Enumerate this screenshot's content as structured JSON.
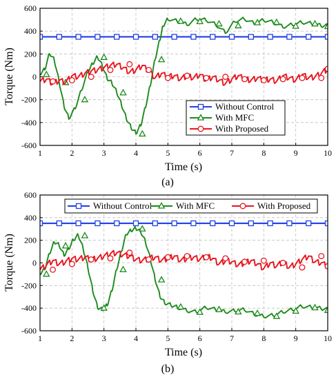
{
  "figure": {
    "caption_a": "(a)",
    "caption_b": "(b)"
  },
  "colors": {
    "without_control": "#1f3fe6",
    "with_mfc": "#1b8a1b",
    "with_proposed": "#e8141e",
    "grid": "#bfbfbf"
  },
  "chart_data": [
    {
      "type": "line",
      "panel": "a",
      "xlabel": "Time (s)",
      "ylabel": "Torque (Nm)",
      "xlim": [
        1,
        10
      ],
      "ylim": [
        -600,
        600
      ],
      "xticks": [
        1,
        2,
        3,
        4,
        5,
        6,
        7,
        8,
        9,
        10
      ],
      "yticks": [
        -600,
        -400,
        -200,
        0,
        200,
        400,
        600
      ],
      "grid": true,
      "legend_position": "bottom-right",
      "series": [
        {
          "name": "Without Control",
          "color": "#1f3fe6",
          "marker": "square",
          "x": [
            1,
            10
          ],
          "y": [
            350,
            350
          ]
        },
        {
          "name": "With MFC",
          "color": "#1b8a1b",
          "marker": "triangle",
          "x": [
            1.0,
            1.15,
            1.3,
            1.45,
            1.6,
            1.75,
            1.9,
            2.1,
            2.3,
            2.5,
            2.65,
            2.8,
            2.95,
            3.1,
            3.25,
            3.4,
            3.55,
            3.7,
            3.85,
            4.0,
            4.15,
            4.3,
            4.45,
            4.6,
            4.75,
            4.85,
            5.0,
            5.3,
            5.6,
            5.9,
            6.2,
            6.5,
            6.8,
            7.1,
            7.4,
            7.7,
            8.0,
            8.3,
            8.6,
            8.9,
            9.2,
            9.5,
            9.8,
            10.0
          ],
          "y": [
            20,
            60,
            200,
            140,
            -50,
            -260,
            -370,
            -280,
            -120,
            40,
            110,
            170,
            90,
            -20,
            -60,
            -140,
            -250,
            -370,
            -450,
            -500,
            -430,
            -270,
            -80,
            150,
            320,
            440,
            500,
            480,
            450,
            500,
            490,
            450,
            380,
            480,
            500,
            460,
            490,
            470,
            430,
            450,
            470,
            460,
            440,
            440
          ]
        },
        {
          "name": "With Proposed",
          "color": "#e8141e",
          "marker": "circle",
          "x": [
            1.0,
            1.2,
            1.4,
            1.6,
            1.8,
            2.0,
            2.2,
            2.4,
            2.6,
            2.8,
            3.0,
            3.2,
            3.4,
            3.6,
            3.8,
            4.0,
            4.2,
            4.4,
            4.6,
            4.8,
            5.0,
            5.2,
            5.4,
            5.6,
            5.8,
            6.0,
            6.2,
            6.4,
            6.6,
            6.8,
            7.0,
            7.2,
            7.4,
            7.6,
            7.8,
            8.0,
            8.2,
            8.4,
            8.6,
            8.8,
            9.0,
            9.2,
            9.4,
            9.6,
            9.8,
            10.0
          ],
          "y": [
            -40,
            -20,
            -60,
            -30,
            -50,
            10,
            0,
            30,
            50,
            60,
            80,
            100,
            110,
            80,
            40,
            60,
            100,
            50,
            -10,
            30,
            0,
            10,
            -20,
            10,
            -10,
            20,
            -30,
            0,
            -30,
            -60,
            -20,
            10,
            -20,
            -30,
            -10,
            -30,
            -20,
            -40,
            10,
            -10,
            -30,
            20,
            -10,
            0,
            30,
            70
          ]
        }
      ]
    },
    {
      "type": "line",
      "panel": "b",
      "xlabel": "Time (s)",
      "ylabel": "Torque (Nm)",
      "xlim": [
        1,
        10
      ],
      "ylim": [
        -600,
        600
      ],
      "xticks": [
        1,
        2,
        3,
        4,
        5,
        6,
        7,
        8,
        9,
        10
      ],
      "yticks": [
        -600,
        -400,
        -200,
        0,
        200,
        400,
        600
      ],
      "grid": true,
      "legend_position": "top",
      "series": [
        {
          "name": "Without Control",
          "color": "#1f3fe6",
          "marker": "square",
          "x": [
            1,
            10
          ],
          "y": [
            350,
            350
          ]
        },
        {
          "name": "With MFC",
          "color": "#1b8a1b",
          "marker": "triangle",
          "x": [
            1.0,
            1.15,
            1.3,
            1.45,
            1.6,
            1.75,
            1.9,
            2.05,
            2.2,
            2.35,
            2.5,
            2.65,
            2.8,
            2.95,
            3.1,
            3.25,
            3.4,
            3.55,
            3.7,
            3.85,
            4.0,
            4.15,
            4.3,
            4.45,
            4.6,
            4.75,
            4.9,
            5.1,
            5.3,
            5.6,
            5.9,
            6.2,
            6.5,
            6.8,
            7.1,
            7.4,
            7.7,
            8.0,
            8.3,
            8.6,
            8.9,
            9.2,
            9.5,
            9.8,
            10.0
          ],
          "y": [
            -100,
            -60,
            80,
            180,
            150,
            60,
            120,
            200,
            240,
            120,
            -50,
            -250,
            -400,
            -420,
            -380,
            -250,
            -60,
            100,
            250,
            280,
            300,
            270,
            180,
            30,
            -150,
            -300,
            -360,
            -380,
            -400,
            -430,
            -440,
            -400,
            -420,
            -440,
            -430,
            -420,
            -460,
            -480,
            -470,
            -440,
            -420,
            -390,
            -400,
            -410,
            -420
          ]
        },
        {
          "name": "With Proposed",
          "color": "#e8141e",
          "marker": "circle",
          "x": [
            1.0,
            1.2,
            1.4,
            1.6,
            1.8,
            2.0,
            2.2,
            2.4,
            2.6,
            2.8,
            3.0,
            3.2,
            3.4,
            3.6,
            3.8,
            4.0,
            4.2,
            4.4,
            4.6,
            4.8,
            5.0,
            5.2,
            5.4,
            5.6,
            5.8,
            6.0,
            6.2,
            6.4,
            6.6,
            6.8,
            7.0,
            7.2,
            7.4,
            7.6,
            7.8,
            8.0,
            8.2,
            8.4,
            8.6,
            8.8,
            9.0,
            9.2,
            9.4,
            9.6,
            9.8,
            10.0
          ],
          "y": [
            -60,
            -20,
            20,
            -10,
            10,
            40,
            30,
            50,
            30,
            40,
            60,
            80,
            90,
            70,
            60,
            30,
            20,
            40,
            50,
            20,
            40,
            60,
            20,
            40,
            50,
            30,
            60,
            40,
            -10,
            20,
            10,
            -20,
            0,
            20,
            -10,
            -50,
            0,
            -30,
            10,
            -40,
            -10,
            30,
            60,
            10,
            0,
            -30
          ]
        }
      ]
    }
  ]
}
